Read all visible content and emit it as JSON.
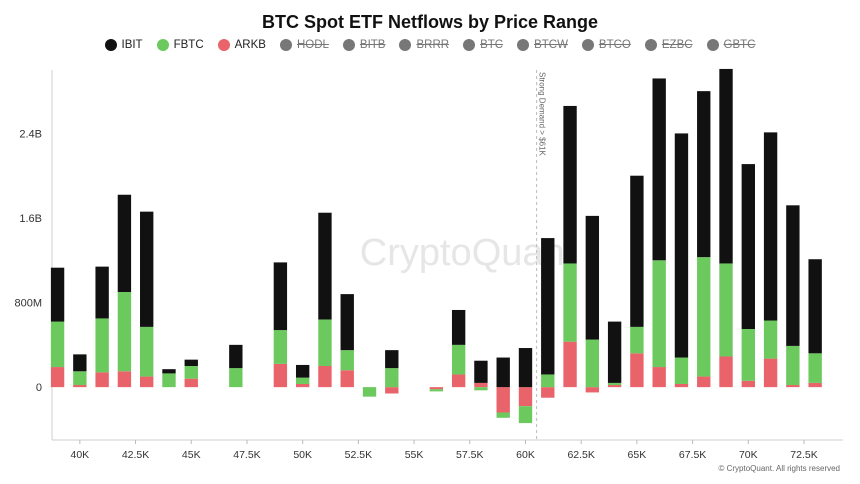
{
  "footer": "© CryptoQuant. All rights reserved",
  "watermark": "CryptoQuant",
  "chart_data": {
    "type": "bar",
    "stacked": true,
    "title": "BTC Spot ETF Netflows by Price Range",
    "xlabel": "",
    "ylabel": "",
    "ylim": [
      -0.5,
      3.0
    ],
    "y_unit": "B USD",
    "yticks": [
      {
        "value": 0,
        "label": "0"
      },
      {
        "value": 0.8,
        "label": "800M"
      },
      {
        "value": 1.6,
        "label": "1.6B"
      },
      {
        "value": 2.4,
        "label": "2.4B"
      }
    ],
    "x_range": [
      38750,
      74250
    ],
    "x_ticks": [
      {
        "value": 40000,
        "label": "40K"
      },
      {
        "value": 42500,
        "label": "42.5K"
      },
      {
        "value": 45000,
        "label": "45K"
      },
      {
        "value": 47500,
        "label": "47.5K"
      },
      {
        "value": 50000,
        "label": "50K"
      },
      {
        "value": 52500,
        "label": "52.5K"
      },
      {
        "value": 55000,
        "label": "55K"
      },
      {
        "value": 57500,
        "label": "57.5K"
      },
      {
        "value": 60000,
        "label": "60K"
      },
      {
        "value": 62500,
        "label": "62.5K"
      },
      {
        "value": 65000,
        "label": "65K"
      },
      {
        "value": 67500,
        "label": "67.5K"
      },
      {
        "value": 70000,
        "label": "70K"
      },
      {
        "value": 72500,
        "label": "72.5K"
      }
    ],
    "annotation": {
      "x": 60500,
      "label": "Strong Demand > $61K"
    },
    "legend": [
      {
        "name": "IBIT",
        "color": "#111111",
        "enabled": true
      },
      {
        "name": "FBTC",
        "color": "#6cc95e",
        "enabled": true
      },
      {
        "name": "ARKB",
        "color": "#e8636a",
        "enabled": true
      },
      {
        "name": "HODL",
        "color": "#777777",
        "enabled": false
      },
      {
        "name": "BITB",
        "color": "#777777",
        "enabled": false
      },
      {
        "name": "BRRR",
        "color": "#777777",
        "enabled": false
      },
      {
        "name": "BTC",
        "color": "#777777",
        "enabled": false
      },
      {
        "name": "BTCW",
        "color": "#777777",
        "enabled": false
      },
      {
        "name": "BTCO",
        "color": "#777777",
        "enabled": false
      },
      {
        "name": "EZBC",
        "color": "#777777",
        "enabled": false
      },
      {
        "name": "GBTC",
        "color": "#777777",
        "enabled": false
      }
    ],
    "x": [
      39000,
      40000,
      41000,
      42000,
      43000,
      44000,
      45000,
      47000,
      49000,
      50000,
      51000,
      52000,
      53000,
      54000,
      56000,
      57000,
      58000,
      59000,
      60000,
      61000,
      62000,
      63000,
      64000,
      65000,
      66000,
      67000,
      68000,
      69000,
      70000,
      71000,
      72000,
      73000
    ],
    "series": [
      {
        "name": "ARKB",
        "values": [
          0.19,
          0.02,
          0.14,
          0.15,
          0.1,
          0.0,
          0.08,
          0.0,
          0.22,
          0.03,
          0.2,
          0.16,
          0.0,
          -0.06,
          -0.02,
          0.12,
          0.04,
          -0.24,
          -0.18,
          -0.1,
          0.43,
          -0.05,
          0.02,
          0.32,
          0.19,
          0.03,
          0.1,
          0.29,
          0.06,
          0.27,
          0.02,
          0.04
        ]
      },
      {
        "name": "FBTC",
        "values": [
          0.43,
          0.13,
          0.51,
          0.75,
          0.47,
          0.13,
          0.12,
          0.18,
          0.32,
          0.06,
          0.44,
          0.19,
          -0.09,
          0.18,
          -0.02,
          0.28,
          -0.03,
          -0.05,
          -0.16,
          0.12,
          0.74,
          0.45,
          0.02,
          0.25,
          1.01,
          0.25,
          1.13,
          0.88,
          0.49,
          0.36,
          0.37,
          0.28
        ]
      },
      {
        "name": "IBIT",
        "values": [
          0.51,
          0.16,
          0.49,
          0.92,
          1.09,
          0.04,
          0.06,
          0.22,
          0.64,
          0.12,
          1.01,
          0.53,
          0.0,
          0.17,
          0.0,
          0.33,
          0.21,
          0.28,
          0.37,
          1.29,
          1.49,
          1.17,
          0.58,
          1.43,
          1.72,
          2.12,
          1.57,
          1.84,
          1.56,
          1.78,
          1.33,
          0.89
        ]
      }
    ]
  }
}
